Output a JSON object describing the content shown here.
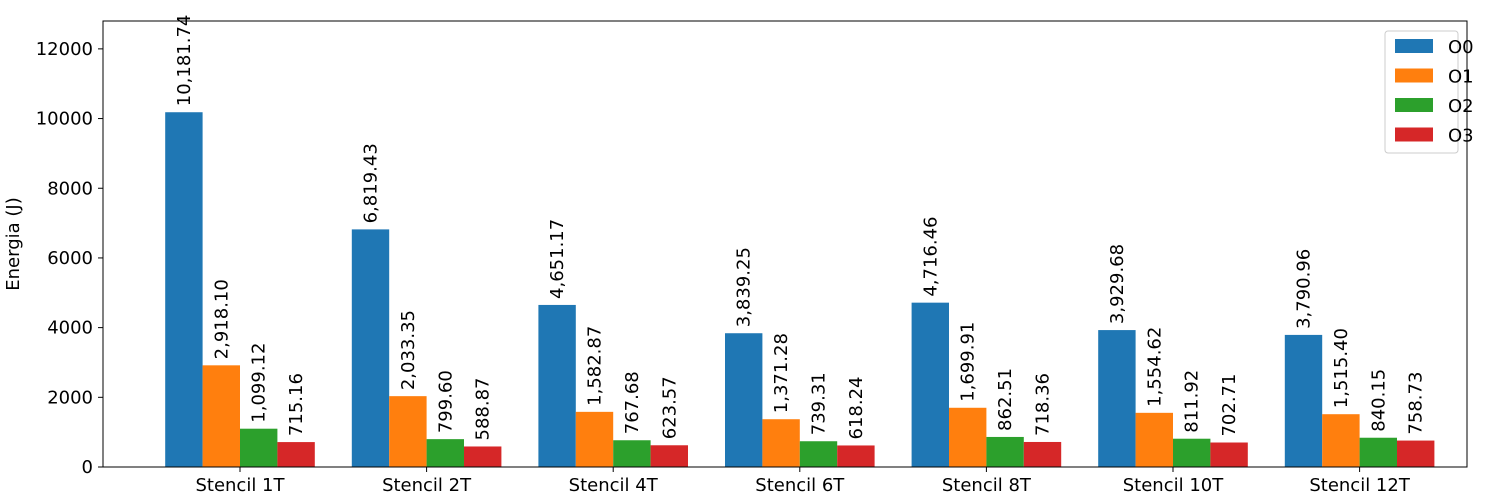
{
  "chart_data": {
    "type": "bar",
    "title": "",
    "xlabel": "",
    "ylabel": "Energia (J)",
    "ylim": [
      0,
      12800
    ],
    "yticks": [
      0,
      2000,
      4000,
      6000,
      8000,
      10000,
      12000
    ],
    "categories": [
      "Stencil 1T",
      "Stencil 2T",
      "Stencil 4T",
      "Stencil 6T",
      "Stencil 8T",
      "Stencil 10T",
      "Stencil 12T"
    ],
    "series": [
      {
        "name": "O0",
        "color": "#1f77b4",
        "values": [
          10181.74,
          6819.43,
          4651.17,
          3839.25,
          4716.46,
          3929.68,
          3790.96
        ],
        "labels": [
          "10,181.74",
          "6,819.43",
          "4,651.17",
          "3,839.25",
          "4,716.46",
          "3,929.68",
          "3,790.96"
        ]
      },
      {
        "name": "O1",
        "color": "#ff7f0e",
        "values": [
          2918.1,
          2033.35,
          1582.87,
          1371.28,
          1699.91,
          1554.62,
          1515.4
        ],
        "labels": [
          "2,918.10",
          "2,033.35",
          "1,582.87",
          "1,371.28",
          "1,699.91",
          "1,554.62",
          "1,515.40"
        ]
      },
      {
        "name": "O2",
        "color": "#2ca02c",
        "values": [
          1099.12,
          799.6,
          767.68,
          739.31,
          862.51,
          811.92,
          840.15
        ],
        "labels": [
          "1,099.12",
          "799.60",
          "767.68",
          "739.31",
          "862.51",
          "811.92",
          "840.15"
        ]
      },
      {
        "name": "O3",
        "color": "#d62728",
        "values": [
          715.16,
          588.87,
          623.57,
          618.24,
          718.36,
          702.71,
          758.73
        ],
        "labels": [
          "715.16",
          "588.87",
          "623.57",
          "618.24",
          "718.36",
          "702.71",
          "758.73"
        ]
      }
    ],
    "grid": false,
    "legend_position": "top-right"
  }
}
